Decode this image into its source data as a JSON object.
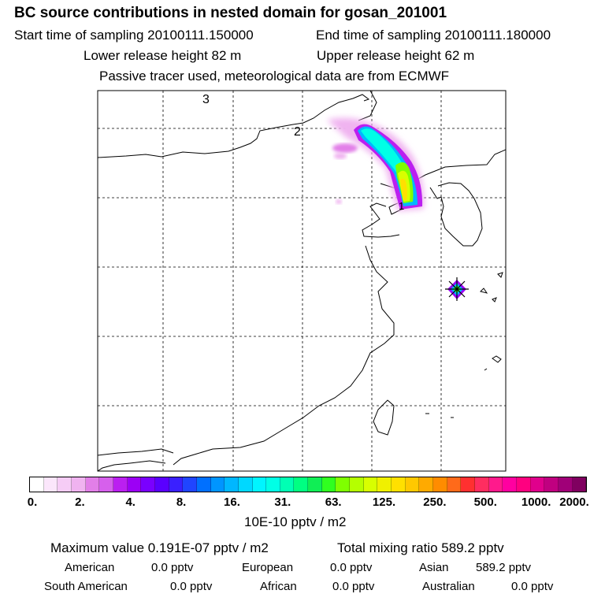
{
  "header": {
    "title": "BC  source contributions in nested domain for gosan_201001",
    "start": "Start time of sampling 20100111.150000",
    "end": "End time of sampling 20100111.180000",
    "lower": "Lower release height   82 m",
    "upper": "Upper release height   62 m",
    "tracer": "Passive tracer used, meteorological data are from ECMWF"
  },
  "chart_data": {
    "type": "heatmap",
    "title": "BC  source contributions in nested domain for gosan_201001",
    "map_labels": [
      "3",
      "2",
      "1"
    ],
    "colorbar": {
      "ticks": [
        "0.",
        "2.",
        "4.",
        "8.",
        "16.",
        "31.",
        "63.",
        "125.",
        "250.",
        "500.",
        "1000.",
        "2000."
      ],
      "units": "10E-10 pptv / m2",
      "colors": [
        "#ffffff",
        "#fbe6fb",
        "#f6ccf6",
        "#f0b3f0",
        "#e27fe8",
        "#d660ec",
        "#bb1ff0",
        "#9c00f5",
        "#7a00ff",
        "#5a00ff",
        "#3a20ff",
        "#2045ff",
        "#0070ff",
        "#0095ff",
        "#00b7ff",
        "#00d8ff",
        "#00f5ff",
        "#00ffe6",
        "#00ffb4",
        "#00ff82",
        "#10ee55",
        "#30ff20",
        "#7fff00",
        "#b5ff00",
        "#d8ff00",
        "#f0f000",
        "#ffe000",
        "#ffc800",
        "#ffaa00",
        "#ff8c00",
        "#ff6a1a",
        "#ff3030",
        "#ff2d60",
        "#ff1a8c",
        "#ff00a0",
        "#ff0080",
        "#e0008c",
        "#c00080",
        "#a00078",
        "#800060"
      ]
    },
    "plume_max_color": "#ffe000"
  },
  "footer": {
    "max_label": "Maximum value  0.191E-07 pptv / m2",
    "total_label": "Total mixing ratio      589.2 pptv",
    "sources": [
      {
        "name": "American",
        "value": "0.0 pptv"
      },
      {
        "name": "European",
        "value": "0.0 pptv"
      },
      {
        "name": "Asian",
        "value": "589.2 pptv"
      },
      {
        "name": "South American",
        "value": "0.0 pptv"
      },
      {
        "name": "African",
        "value": "0.0 pptv"
      },
      {
        "name": "Australian",
        "value": "0.0 pptv"
      }
    ]
  }
}
